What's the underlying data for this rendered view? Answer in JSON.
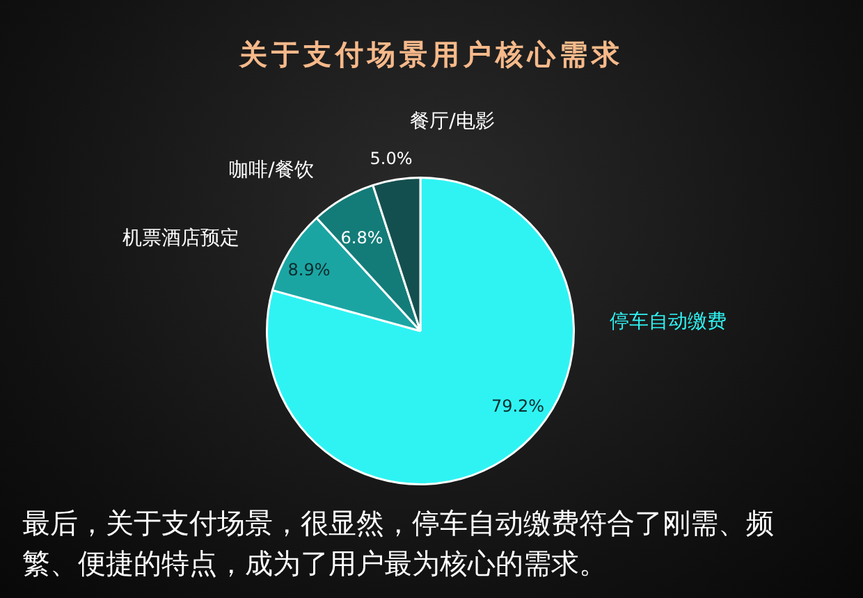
{
  "chart_data": {
    "type": "pie",
    "title": "关于支付场景用户核心需求",
    "categories": [
      "停车自动缴费",
      "机票酒店预定",
      "咖啡/餐饮",
      "餐厅/电影"
    ],
    "values": [
      79.2,
      8.9,
      6.8,
      5.0
    ],
    "value_labels": [
      "79.2%",
      "8.9%",
      "6.8%",
      "5.0%"
    ],
    "colors": [
      "#2ff3f3",
      "#1aa5a3",
      "#137c78",
      "#144f4f"
    ],
    "annotations": [
      "最后，关于支付场景，很显然，停车自动缴费符合了刚需、频繁、便捷的特点，成为了用户最为核心的需求。"
    ]
  }
}
